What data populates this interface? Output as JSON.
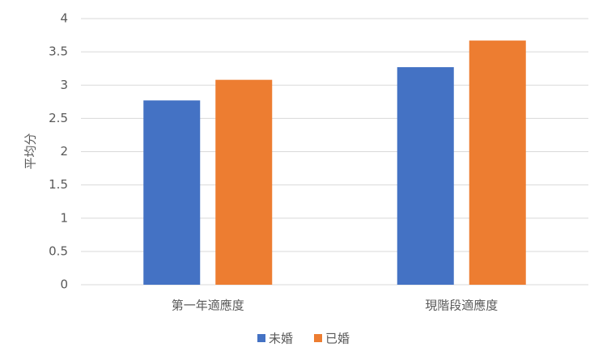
{
  "chart_data": {
    "type": "bar",
    "y_label": "平均分",
    "categories": [
      "第一年適應度",
      "現階段適應度"
    ],
    "series": [
      {
        "name": "未婚",
        "color": "#4472c4",
        "values": [
          2.77,
          3.27
        ]
      },
      {
        "name": "已婚",
        "color": "#ed7d31",
        "values": [
          3.08,
          3.67
        ]
      }
    ],
    "ylim": [
      0,
      4
    ],
    "yticks": [
      0,
      0.5,
      1,
      1.5,
      2,
      2.5,
      3,
      3.5,
      4
    ],
    "grid": true,
    "legend": "bottom"
  }
}
